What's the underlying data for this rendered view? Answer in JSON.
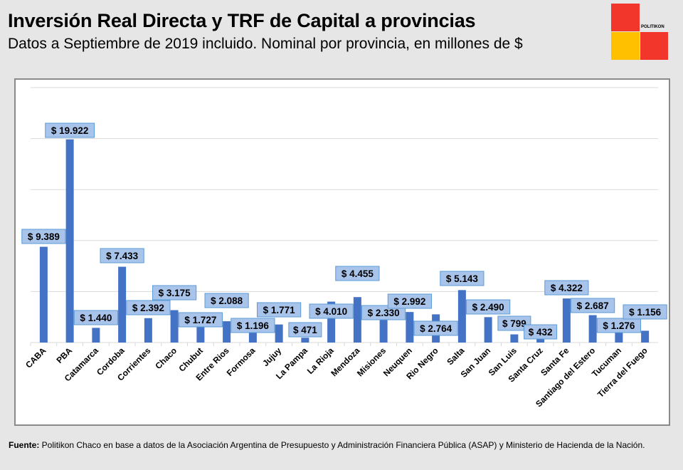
{
  "header": {
    "title": "Inversión Real Directa y TRF de Capital a provincias",
    "subtitle": "Datos a Septiembre de 2019 incluido. Nominal por provincia, en millones de $"
  },
  "logo": {
    "text": "POLITIKON",
    "colors": [
      "#f3362c",
      "#ffc000",
      "#f3362c"
    ]
  },
  "footer": {
    "label": "Fuente:",
    "text": " Politikon Chaco en base a datos de la Asociación Argentina de Presupuesto y Administración Financiera Pública (ASAP) y Ministerio de Hacienda de la Nación."
  },
  "chart_data": {
    "type": "bar",
    "title": "",
    "xlabel": "",
    "ylabel": "",
    "ylim": [
      0,
      25000
    ],
    "grid": true,
    "bar_color": "#4472c4",
    "label_fill": "#a9c4eb",
    "label_border": "#5b9bd5",
    "categories": [
      "CABA",
      "PBA",
      "Catamarca",
      "Cordoba",
      "Corrientes",
      "Chaco",
      "Chubut",
      "Entre Rios",
      "Formosa",
      "Jujuy",
      "La Pampa",
      "La Rioja",
      "Mendoza",
      "Misiones",
      "Neuquen",
      "Rio Negro",
      "Salta",
      "San Juan",
      "San Luis",
      "Santa Cruz",
      "Santa Fe",
      "Santiago del Estero",
      "Tucuman",
      "Tierra del Fuego"
    ],
    "values": [
      9389,
      19922,
      1440,
      7433,
      2392,
      3175,
      1727,
      2088,
      1196,
      1771,
      471,
      4010,
      4455,
      2330,
      2992,
      2764,
      5143,
      2490,
      799,
      432,
      4322,
      2687,
      1276,
      1156
    ],
    "labels": [
      "$ 9.389",
      "$ 19.922",
      "$ 1.440",
      "$ 7.433",
      "$ 2.392",
      "$ 3.175",
      "$ 1.727",
      "$ 2.088",
      "$ 1.196",
      "$ 1.771",
      "$ 471",
      "$ 4.010",
      "$ 4.455",
      "$ 2.330",
      "$ 2.992",
      "$ 2.764",
      "$ 5.143",
      "$ 2.490",
      "$ 799",
      "$ 432",
      "$ 4.322",
      "$ 2.687",
      "$ 1.276",
      "$ 1.156"
    ]
  }
}
